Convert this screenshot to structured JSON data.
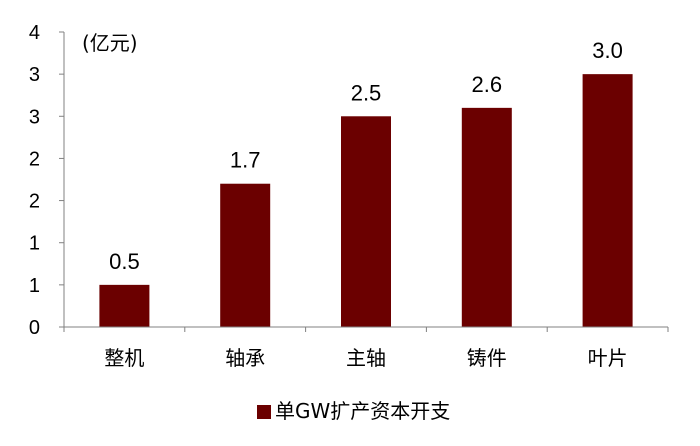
{
  "chart_data": {
    "type": "bar",
    "categories": [
      "整机",
      "轴承",
      "主轴",
      "铸件",
      "叶片"
    ],
    "series": [
      {
        "name": "单GW扩产资本开支",
        "values": [
          0.5,
          1.7,
          2.5,
          2.6,
          3.0
        ],
        "color": "#6b0000"
      }
    ],
    "data_labels": [
      "0.5",
      "1.7",
      "2.5",
      "2.6",
      "3.0"
    ],
    "unit_label": "(亿元)",
    "y_tick_labels": [
      "0",
      "1",
      "1",
      "2",
      "2",
      "3",
      "3",
      "4"
    ],
    "ylim": [
      0,
      3.5
    ],
    "grid": false,
    "legend_position": "bottom"
  }
}
